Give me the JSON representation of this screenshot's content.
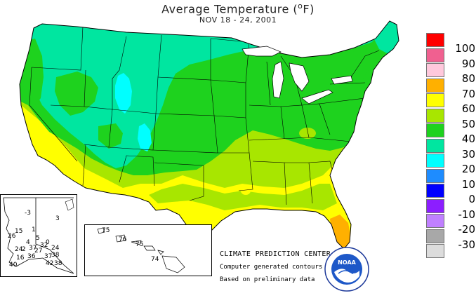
{
  "title": "Average Temperature (",
  "title_unit": "o",
  "title_end": "F)",
  "subtitle": "NOV 18 - 24, 2001",
  "legend": [
    {
      "label": "100",
      "color": "#ff0000"
    },
    {
      "label": "90",
      "color": "#f06090"
    },
    {
      "label": "80",
      "color": "#ffc8dc"
    },
    {
      "label": "70",
      "color": "#ffb000"
    },
    {
      "label": "60",
      "color": "#ffff00"
    },
    {
      "label": "50",
      "color": "#a8e600"
    },
    {
      "label": "40",
      "color": "#1ed21e"
    },
    {
      "label": "30",
      "color": "#00e6a0"
    },
    {
      "label": "20",
      "color": "#00ffff"
    },
    {
      "label": "10",
      "color": "#1e8cff"
    },
    {
      "label": "0",
      "color": "#0000ff"
    },
    {
      "label": "-10",
      "color": "#8c1eff"
    },
    {
      "label": "-20",
      "color": "#c080ff"
    },
    {
      "label": "-30",
      "color": "#a8a8a8"
    },
    {
      "label": "",
      "color": "#dcdcdc"
    }
  ],
  "alaska_stations": [
    "-3",
    "3",
    "15",
    "1",
    "5",
    "0",
    "26",
    "4",
    "32",
    "24",
    "37",
    "27",
    "2",
    "36",
    "37",
    "24",
    "16",
    "38",
    "40",
    "42",
    "38"
  ],
  "hawaii_stations": [
    "75",
    "76",
    "75",
    "74"
  ],
  "credits": {
    "center": "CLIMATE PREDICTION CENTER, NOAA",
    "line1": "Computer generated contours",
    "line2": "Based on preliminary data"
  },
  "logo": {
    "text": "NOAA",
    "ring_text": "NATIONAL OCEANIC AND ATMOSPHERIC ADMINISTRATION · U.S. DEPARTMENT OF COMMERCE"
  }
}
